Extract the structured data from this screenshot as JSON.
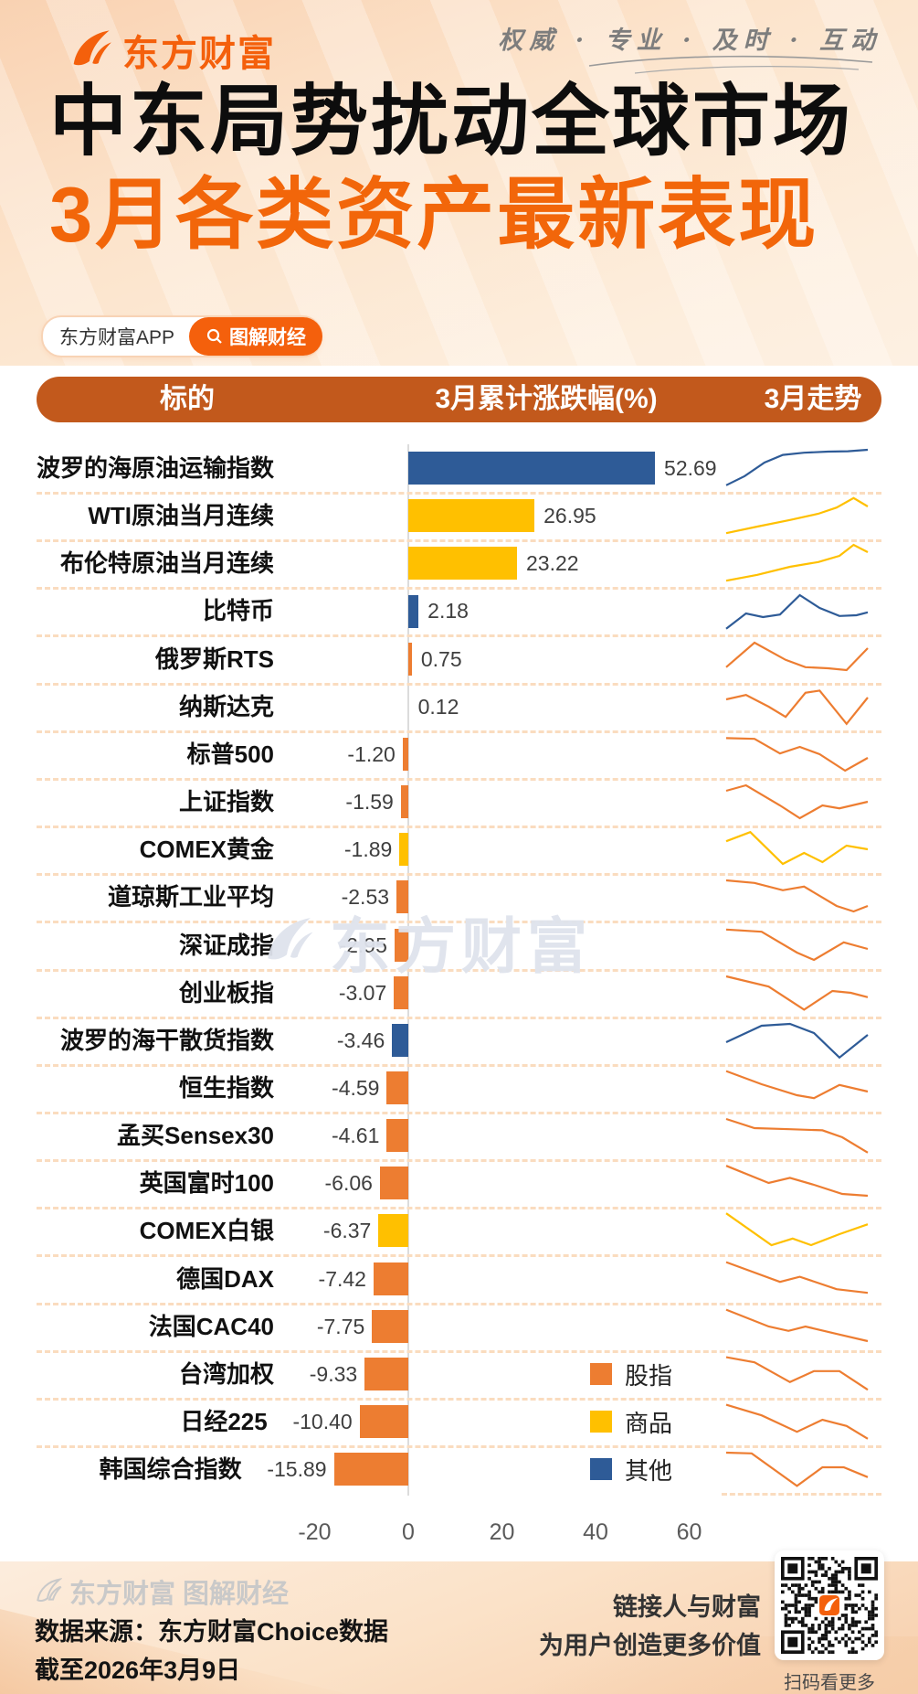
{
  "brand": {
    "name": "东方财富",
    "slogan": "权威 · 专业 · 及时 · 互动"
  },
  "title": {
    "line1": "中东局势扰动全球市场",
    "line2": "3月各类资产最新表现"
  },
  "badges": {
    "app": "东方财富APP",
    "column": "图解财经"
  },
  "table_header": {
    "col_target": "标的",
    "col_change": "3月累计涨跌幅(%)",
    "col_trend": "3月走势"
  },
  "watermark": {
    "text": "东方财富"
  },
  "colors": {
    "accent": "#F4600C",
    "header_bar": "#C2591C",
    "bar_orange": "#ED7D31",
    "bar_yellow": "#FFC000",
    "bar_blue": "#2E5B97",
    "separator": "#FADCBF",
    "axis_line": "#DCDCDC",
    "tick_text": "#5A5A5A",
    "value_text": "#3F3F3F"
  },
  "chart_data": {
    "type": "bar",
    "orientation": "horizontal",
    "xlabel": "3月累计涨跌幅(%)",
    "xlim": [
      -22,
      72
    ],
    "x_ticks": [
      -20,
      0,
      20,
      40,
      60
    ],
    "grid": false,
    "legend_position": "bottom-center",
    "legend": [
      {
        "label": "股指",
        "color": "#ED7D31"
      },
      {
        "label": "商品",
        "color": "#FFC000"
      },
      {
        "label": "其他",
        "color": "#2E5B97"
      }
    ],
    "rows": [
      {
        "name": "波罗的海原油运输指数",
        "value": 52.69,
        "label": "52.69",
        "category": "其他",
        "spark": [
          [
            0,
            0.97
          ],
          [
            0.13,
            0.72
          ],
          [
            0.27,
            0.35
          ],
          [
            0.4,
            0.14
          ],
          [
            0.55,
            0.08
          ],
          [
            0.72,
            0.05
          ],
          [
            0.86,
            0.04
          ],
          [
            1,
            0.0
          ]
        ]
      },
      {
        "name": "WTI原油当月连续",
        "value": 26.95,
        "label": "26.95",
        "category": "商品",
        "spark": [
          [
            0,
            0.98
          ],
          [
            0.22,
            0.8
          ],
          [
            0.45,
            0.62
          ],
          [
            0.65,
            0.45
          ],
          [
            0.78,
            0.28
          ],
          [
            0.9,
            0.02
          ],
          [
            1,
            0.25
          ]
        ]
      },
      {
        "name": "布伦特原油当月连续",
        "value": 23.22,
        "label": "23.22",
        "category": "商品",
        "spark": [
          [
            0,
            0.98
          ],
          [
            0.22,
            0.82
          ],
          [
            0.45,
            0.6
          ],
          [
            0.65,
            0.47
          ],
          [
            0.8,
            0.3
          ],
          [
            0.9,
            0.0
          ],
          [
            1,
            0.2
          ]
        ]
      },
      {
        "name": "比特币",
        "value": 2.18,
        "label": "2.18",
        "category": "其他",
        "spark": [
          [
            0,
            0.97
          ],
          [
            0.14,
            0.55
          ],
          [
            0.26,
            0.65
          ],
          [
            0.38,
            0.58
          ],
          [
            0.52,
            0.05
          ],
          [
            0.66,
            0.4
          ],
          [
            0.8,
            0.62
          ],
          [
            0.92,
            0.6
          ],
          [
            1,
            0.52
          ]
        ]
      },
      {
        "name": "俄罗斯RTS",
        "value": 0.75,
        "label": "0.75",
        "category": "股指",
        "spark": [
          [
            0,
            0.72
          ],
          [
            0.2,
            0.05
          ],
          [
            0.42,
            0.52
          ],
          [
            0.56,
            0.72
          ],
          [
            0.72,
            0.75
          ],
          [
            0.85,
            0.8
          ],
          [
            1,
            0.2
          ]
        ]
      },
      {
        "name": "纳斯达克",
        "value": 0.12,
        "label": "0.12",
        "category": "股指",
        "spark": [
          [
            0,
            0.3
          ],
          [
            0.14,
            0.18
          ],
          [
            0.3,
            0.5
          ],
          [
            0.42,
            0.78
          ],
          [
            0.56,
            0.12
          ],
          [
            0.66,
            0.06
          ],
          [
            0.85,
            0.97
          ],
          [
            1,
            0.25
          ]
        ]
      },
      {
        "name": "标普500",
        "value": -1.2,
        "label": "-1.20",
        "category": "股指",
        "spark": [
          [
            0,
            0.06
          ],
          [
            0.2,
            0.08
          ],
          [
            0.38,
            0.48
          ],
          [
            0.52,
            0.3
          ],
          [
            0.66,
            0.5
          ],
          [
            0.84,
            0.95
          ],
          [
            1,
            0.6
          ]
        ]
      },
      {
        "name": "上证指数",
        "value": -1.59,
        "label": "-1.59",
        "category": "股指",
        "spark": [
          [
            0,
            0.2
          ],
          [
            0.14,
            0.05
          ],
          [
            0.38,
            0.6
          ],
          [
            0.52,
            0.95
          ],
          [
            0.68,
            0.6
          ],
          [
            0.8,
            0.68
          ],
          [
            1,
            0.5
          ]
        ]
      },
      {
        "name": "COMEX黄金",
        "value": -1.89,
        "label": "-1.89",
        "category": "商品",
        "spark": [
          [
            0,
            0.28
          ],
          [
            0.17,
            0.03
          ],
          [
            0.4,
            0.9
          ],
          [
            0.55,
            0.6
          ],
          [
            0.68,
            0.85
          ],
          [
            0.85,
            0.4
          ],
          [
            1,
            0.5
          ]
        ]
      },
      {
        "name": "道琼斯工业平均",
        "value": -2.53,
        "label": "-2.53",
        "category": "股指",
        "spark": [
          [
            0,
            0.05
          ],
          [
            0.2,
            0.12
          ],
          [
            0.4,
            0.32
          ],
          [
            0.55,
            0.22
          ],
          [
            0.78,
            0.75
          ],
          [
            0.9,
            0.9
          ],
          [
            1,
            0.75
          ]
        ]
      },
      {
        "name": "深证成指",
        "value": -2.95,
        "label": "-2.95",
        "category": "股指",
        "spark": [
          [
            0,
            0.07
          ],
          [
            0.25,
            0.13
          ],
          [
            0.5,
            0.7
          ],
          [
            0.62,
            0.9
          ],
          [
            0.83,
            0.42
          ],
          [
            1,
            0.6
          ]
        ]
      },
      {
        "name": "创业板指",
        "value": -3.07,
        "label": "-3.07",
        "category": "股指",
        "spark": [
          [
            0,
            0.05
          ],
          [
            0.3,
            0.33
          ],
          [
            0.55,
            0.96
          ],
          [
            0.75,
            0.45
          ],
          [
            0.88,
            0.5
          ],
          [
            1,
            0.62
          ]
        ]
      },
      {
        "name": "波罗的海干散货指数",
        "value": -3.46,
        "label": "-3.46",
        "category": "其他",
        "spark": [
          [
            0,
            0.55
          ],
          [
            0.25,
            0.1
          ],
          [
            0.45,
            0.05
          ],
          [
            0.62,
            0.3
          ],
          [
            0.8,
            0.97
          ],
          [
            1,
            0.35
          ]
        ]
      },
      {
        "name": "恒生指数",
        "value": -4.59,
        "label": "-4.59",
        "category": "股指",
        "spark": [
          [
            0,
            0.04
          ],
          [
            0.25,
            0.4
          ],
          [
            0.5,
            0.7
          ],
          [
            0.62,
            0.78
          ],
          [
            0.8,
            0.42
          ],
          [
            1,
            0.6
          ]
        ]
      },
      {
        "name": "孟买Sensex30",
        "value": -4.61,
        "label": "-4.61",
        "category": "股指",
        "spark": [
          [
            0,
            0.05
          ],
          [
            0.2,
            0.3
          ],
          [
            0.45,
            0.33
          ],
          [
            0.68,
            0.36
          ],
          [
            0.82,
            0.55
          ],
          [
            1,
            0.97
          ]
        ]
      },
      {
        "name": "英国富时100",
        "value": -6.06,
        "label": "-6.06",
        "category": "股指",
        "spark": [
          [
            0,
            0.03
          ],
          [
            0.3,
            0.5
          ],
          [
            0.45,
            0.36
          ],
          [
            0.62,
            0.55
          ],
          [
            0.82,
            0.8
          ],
          [
            1,
            0.85
          ]
        ]
      },
      {
        "name": "COMEX白银",
        "value": -6.37,
        "label": "-6.37",
        "category": "商品",
        "spark": [
          [
            0,
            0.03
          ],
          [
            0.32,
            0.9
          ],
          [
            0.47,
            0.72
          ],
          [
            0.6,
            0.9
          ],
          [
            0.8,
            0.6
          ],
          [
            1,
            0.33
          ]
        ]
      },
      {
        "name": "德国DAX",
        "value": -7.42,
        "label": "-7.42",
        "category": "股指",
        "spark": [
          [
            0,
            0.04
          ],
          [
            0.38,
            0.58
          ],
          [
            0.52,
            0.44
          ],
          [
            0.78,
            0.78
          ],
          [
            1,
            0.88
          ]
        ]
      },
      {
        "name": "法国CAC40",
        "value": -7.75,
        "label": "-7.75",
        "category": "股指",
        "spark": [
          [
            0,
            0.04
          ],
          [
            0.3,
            0.5
          ],
          [
            0.44,
            0.62
          ],
          [
            0.56,
            0.5
          ],
          [
            0.8,
            0.72
          ],
          [
            1,
            0.9
          ]
        ]
      },
      {
        "name": "台湾加权",
        "value": -9.33,
        "label": "-9.33",
        "category": "股指",
        "spark": [
          [
            0,
            0.04
          ],
          [
            0.2,
            0.18
          ],
          [
            0.45,
            0.72
          ],
          [
            0.62,
            0.42
          ],
          [
            0.8,
            0.42
          ],
          [
            1,
            0.93
          ]
        ]
      },
      {
        "name": "日经225",
        "value": -10.4,
        "label": "-10.40",
        "category": "股指",
        "spark": [
          [
            0,
            0.04
          ],
          [
            0.25,
            0.33
          ],
          [
            0.5,
            0.78
          ],
          [
            0.68,
            0.45
          ],
          [
            0.85,
            0.62
          ],
          [
            1,
            0.97
          ]
        ]
      },
      {
        "name": "韩国综合指数",
        "value": -15.89,
        "label": "-15.89",
        "category": "股指",
        "spark": [
          [
            0,
            0.05
          ],
          [
            0.18,
            0.07
          ],
          [
            0.5,
            0.96
          ],
          [
            0.68,
            0.45
          ],
          [
            0.83,
            0.45
          ],
          [
            1,
            0.72
          ]
        ]
      }
    ]
  },
  "footer": {
    "brand_line": "东方财富 图解财经",
    "source_line1": "数据来源：东方财富Choice数据",
    "source_line2": "截至2026年3月9日",
    "slogan_line1": "链接人与财富",
    "slogan_line2": "为用户创造更多价值",
    "qr_caption": "扫码看更多"
  }
}
